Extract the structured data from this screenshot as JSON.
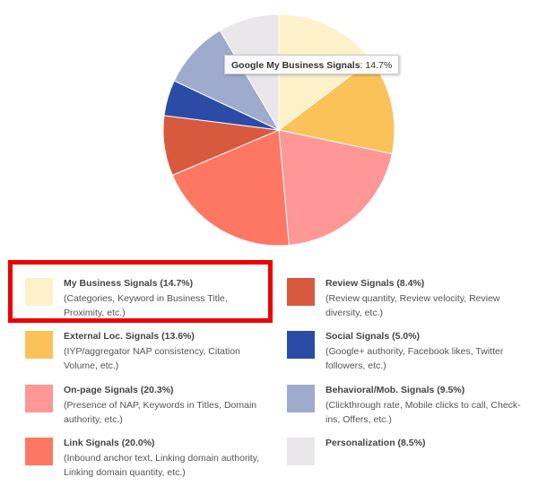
{
  "chart_data": {
    "type": "pie",
    "slices": [
      {
        "label": "Google My Business Signals",
        "value": 14.7,
        "color": "#fdf1ca"
      },
      {
        "label": "External Loc. Signals",
        "value": 13.6,
        "color": "#fcc25a"
      },
      {
        "label": "On-page Signals",
        "value": 20.3,
        "color": "#fe9795"
      },
      {
        "label": "Link Signals",
        "value": 20.0,
        "color": "#fe7763"
      },
      {
        "label": "Review Signals",
        "value": 8.4,
        "color": "#d85a3e"
      },
      {
        "label": "Social Signals",
        "value": 5.0,
        "color": "#2c4ba6"
      },
      {
        "label": "Behavioral/Mob. Signals",
        "value": 9.5,
        "color": "#9fabcd"
      },
      {
        "label": "Personalization",
        "value": 8.5,
        "color": "#e9e7ea"
      }
    ],
    "tooltip": {
      "label": "Google My Business Signals",
      "value": "14.7%"
    }
  },
  "legend": {
    "items": [
      {
        "title": "My Business Signals (14.7%)",
        "desc": "(Categories, Keyword in Business Title, Proximity, etc.)",
        "color": "#fdf1ca"
      },
      {
        "title": "External Loc. Signals (13.6%)",
        "desc": "(IYP/aggregator NAP consistency, Citation Volume, etc.)",
        "color": "#fcc25a"
      },
      {
        "title": "On-page Signals (20.3%)",
        "desc": "(Presence of NAP, Keywords in Titles, Domain authority, etc.)",
        "color": "#fe9795"
      },
      {
        "title": "Link Signals (20.0%)",
        "desc": "(Inbound anchor text, Linking domain authority, Linking domain quantity, etc.)",
        "color": "#fe7763"
      },
      {
        "title": "Review Signals (8.4%)",
        "desc": "(Review quantity, Review velocity, Review diversity, etc.)",
        "color": "#d85a3e"
      },
      {
        "title": "Social Signals (5.0%)",
        "desc": "(Google+ authority, Facebook likes, Twitter followers, etc.)",
        "color": "#2c4ba6"
      },
      {
        "title": "Behavioral/Mob. Signals (9.5%)",
        "desc": "(Clickthrough rate, Mobile clicks to call, Check-ins, Offers, etc.)",
        "color": "#9fabcd"
      },
      {
        "title": "Personalization (8.5%)",
        "desc": "",
        "color": "#e9e7ea"
      }
    ]
  },
  "highlight_color": "#ee0000"
}
